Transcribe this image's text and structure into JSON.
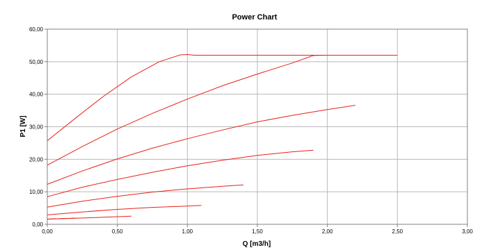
{
  "chart_data": {
    "type": "line",
    "title": "Power Chart",
    "xlabel": "Q [m3/h]",
    "ylabel": "P1 [W]",
    "xlim": [
      0,
      3
    ],
    "ylim": [
      0,
      60
    ],
    "xticks": [
      "0,00",
      "0,50",
      "1,00",
      "1,50",
      "2,00",
      "2,50",
      "3,00"
    ],
    "yticks": [
      "0,00",
      "10,00",
      "20,00",
      "30,00",
      "40,00",
      "50,00",
      "60,00"
    ],
    "grid": true,
    "colors": {
      "series": "#e8201a",
      "grid": "#b8b8b8",
      "axis": "#808080"
    },
    "series": [
      {
        "x": [
          0,
          0.2,
          0.4,
          0.6,
          0.8,
          0.95,
          1.0,
          1.05,
          1.5,
          2.0,
          2.5
        ],
        "y": [
          25.7,
          32.6,
          39.3,
          45.3,
          50.0,
          52.1,
          52.2,
          52.0,
          52.0,
          52.0,
          52.0
        ]
      },
      {
        "x": [
          0,
          0.25,
          0.5,
          0.75,
          1.0,
          1.25,
          1.5,
          1.75,
          1.9,
          2.0,
          2.5
        ],
        "y": [
          18.2,
          23.9,
          29.3,
          34.1,
          38.5,
          42.6,
          46.2,
          49.6,
          51.9,
          52.0,
          52.0
        ]
      },
      {
        "x": [
          0,
          0.25,
          0.5,
          0.75,
          1.0,
          1.25,
          1.5,
          1.75,
          2.0,
          2.2
        ],
        "y": [
          12.3,
          16.4,
          20.1,
          23.4,
          26.3,
          29.0,
          31.5,
          33.5,
          35.3,
          36.6
        ]
      },
      {
        "x": [
          0,
          0.25,
          0.5,
          0.75,
          1.0,
          1.25,
          1.5,
          1.75,
          1.9
        ],
        "y": [
          8.5,
          11.4,
          13.8,
          16.0,
          18.0,
          19.7,
          21.2,
          22.3,
          22.8
        ]
      },
      {
        "x": [
          0,
          0.25,
          0.5,
          0.75,
          1.0,
          1.25,
          1.4
        ],
        "y": [
          5.3,
          7.1,
          8.6,
          9.9,
          10.9,
          11.7,
          12.1
        ]
      },
      {
        "x": [
          0,
          0.25,
          0.5,
          0.75,
          1.0,
          1.1
        ],
        "y": [
          2.9,
          3.8,
          4.6,
          5.2,
          5.6,
          5.8
        ]
      },
      {
        "x": [
          0,
          0.3,
          0.6
        ],
        "y": [
          1.6,
          2.0,
          2.5
        ]
      },
      {
        "x": [
          0,
          0.1,
          0.2
        ],
        "y": [
          1.6,
          1.75,
          1.9
        ]
      }
    ]
  }
}
